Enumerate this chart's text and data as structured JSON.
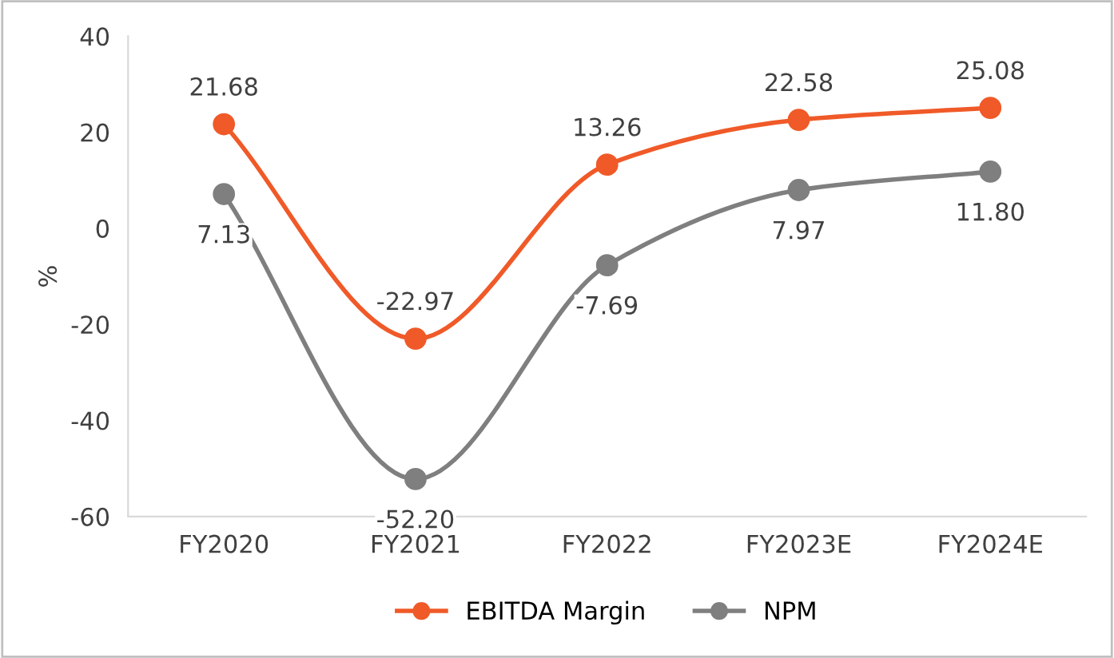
{
  "chart_data": {
    "type": "line",
    "categories": [
      "FY2020",
      "FY2021",
      "FY2022",
      "FY2023E",
      "FY2024E"
    ],
    "ylabel": "%",
    "ylim": [
      -60,
      40
    ],
    "yticks": [
      -60,
      -40,
      -20,
      0,
      20,
      40
    ],
    "grid": false,
    "legend": "bottom",
    "marker": "circle",
    "line_style": "solid",
    "series": [
      {
        "name": "EBITDA Margin",
        "color": "#f05a28",
        "values": [
          21.68,
          -22.97,
          13.26,
          22.58,
          25.08
        ],
        "value_labels": [
          "21.68",
          "-22.97",
          "13.26",
          "22.58",
          "25.08"
        ]
      },
      {
        "name": "NPM",
        "color": "#7f7f7f",
        "values": [
          7.13,
          -52.2,
          -7.69,
          7.97,
          11.8
        ],
        "value_labels": [
          "7.13",
          "-52.20",
          "-7.69",
          "7.97",
          "11.80"
        ]
      }
    ]
  }
}
